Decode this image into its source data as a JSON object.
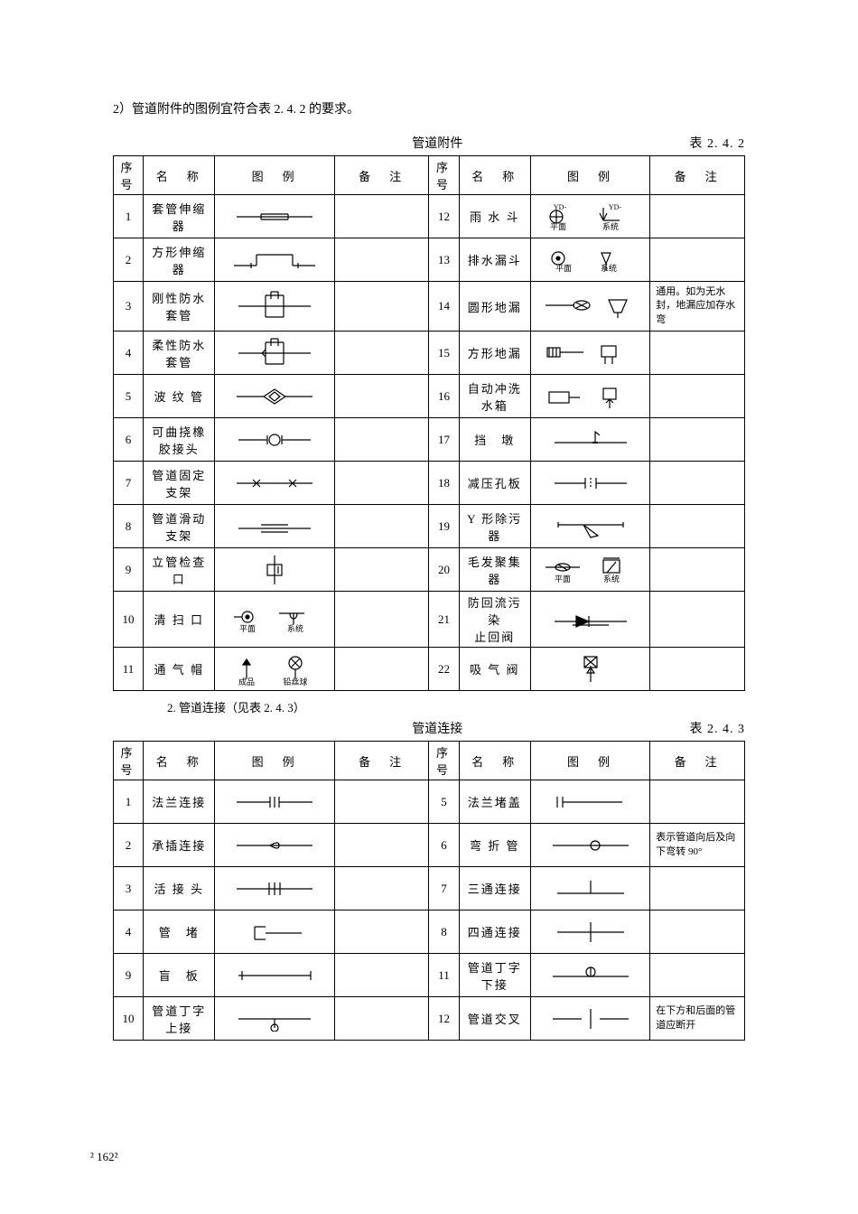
{
  "intro": "2）管道附件的图例宜符合表 2. 4. 2 的要求。",
  "table1": {
    "title_center": "管道附件",
    "title_right": "表 2. 4. 2",
    "headers": [
      "序号",
      "名　称",
      "图　例",
      "备　注",
      "序号",
      "名　称",
      "图　例",
      "备　注"
    ],
    "rows": [
      {
        "l_seq": "1",
        "l_name": "套管伸缩器",
        "r_seq": "12",
        "r_name": "雨 水 斗",
        "r_labels": [
          "YD-",
          "平面",
          "YD-",
          "系统"
        ]
      },
      {
        "l_seq": "2",
        "l_name": "方形伸缩器",
        "r_seq": "13",
        "r_name": "排水漏斗",
        "r_labels": [
          "平面",
          "系统"
        ]
      },
      {
        "l_seq": "3",
        "l_name": "刚性防水套管",
        "r_seq": "14",
        "r_name": "圆形地漏",
        "r_note": "通用。如为无水封，地漏应加存水弯"
      },
      {
        "l_seq": "4",
        "l_name": "柔性防水套管",
        "r_seq": "15",
        "r_name": "方形地漏"
      },
      {
        "l_seq": "5",
        "l_name": "波 纹 管",
        "r_seq": "16",
        "r_name": "自动冲洗水箱"
      },
      {
        "l_seq": "6",
        "l_name": "可曲挠橡\n胶接头",
        "r_seq": "17",
        "r_name": "挡　墩"
      },
      {
        "l_seq": "7",
        "l_name": "管道固定支架",
        "r_seq": "18",
        "r_name": "减压孔板"
      },
      {
        "l_seq": "8",
        "l_name": "管道滑动支架",
        "r_seq": "19",
        "r_name": "Y 形除污器"
      },
      {
        "l_seq": "9",
        "l_name": "立管检查口",
        "r_seq": "20",
        "r_name": "毛发聚集器",
        "r_labels": [
          "平面",
          "系统"
        ]
      },
      {
        "l_seq": "10",
        "l_name": "清 扫 口",
        "l_labels": [
          "平面",
          "系统"
        ],
        "r_seq": "21",
        "r_name": "防回流污染\n止回阀"
      },
      {
        "l_seq": "11",
        "l_name": "通 气 帽",
        "l_labels": [
          "成品",
          "铅丝球"
        ],
        "r_seq": "22",
        "r_name": "吸 气 阀"
      }
    ]
  },
  "subcaption": "2. 管道连接（见表 2. 4. 3）",
  "table2": {
    "title_center": "管道连接",
    "title_right": "表 2. 4. 3",
    "headers": [
      "序号",
      "名　称",
      "图　例",
      "备　注",
      "序号",
      "名　称",
      "图　例",
      "备　注"
    ],
    "rows": [
      {
        "l_seq": "1",
        "l_name": "法兰连接",
        "r_seq": "5",
        "r_name": "法兰堵盖"
      },
      {
        "l_seq": "2",
        "l_name": "承插连接",
        "r_seq": "6",
        "r_name": "弯 折 管",
        "r_note": "表示管道向后及向下弯转 90°"
      },
      {
        "l_seq": "3",
        "l_name": "活 接 头",
        "r_seq": "7",
        "r_name": "三通连接"
      },
      {
        "l_seq": "4",
        "l_name": "管　堵",
        "r_seq": "8",
        "r_name": "四通连接"
      },
      {
        "l_seq": "9",
        "l_name": "盲　板",
        "r_seq": "11",
        "r_name": "管道丁字下接"
      },
      {
        "l_seq": "10",
        "l_name": "管道丁字上接",
        "r_seq": "12",
        "r_name": "管道交叉",
        "r_note": "在下方和后面的管道应断开"
      }
    ]
  },
  "page_num": "²  162²",
  "colors": {
    "line": "#000000",
    "bg": "#ffffff"
  }
}
